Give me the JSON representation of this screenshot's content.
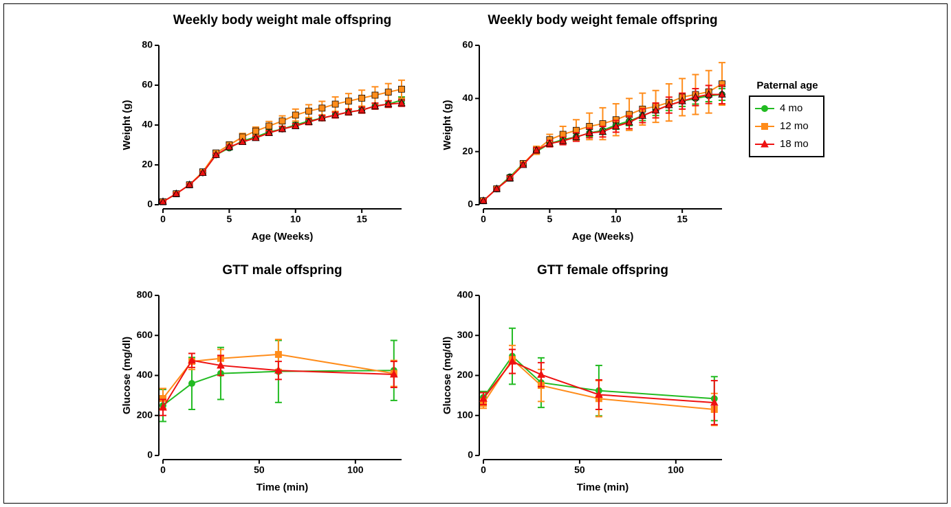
{
  "chart_data": [
    {
      "type": "line",
      "title": "Weekly body weight male offspring",
      "x_label": "Age (Weeks)",
      "y_label": "Weight (g)",
      "x": [
        0,
        1,
        2,
        3,
        4,
        5,
        6,
        7,
        8,
        9,
        10,
        11,
        12,
        13,
        14,
        15,
        16,
        17,
        18
      ],
      "xlim": [
        0,
        18
      ],
      "xticks": [
        0,
        5,
        10,
        15
      ],
      "ylim": [
        0,
        80
      ],
      "yticks": [
        0,
        20,
        40,
        60,
        80
      ],
      "marker_edge": "#000000",
      "series": [
        {
          "name": "4 mo",
          "color": "#22bb22",
          "marker": "circle",
          "values": [
            1.5,
            5.5,
            10,
            16,
            25,
            28.5,
            32,
            34,
            36.5,
            38,
            40,
            42,
            43.5,
            45,
            46.5,
            47.5,
            49.5,
            50.5,
            52.5
          ],
          "errors": [
            0.3,
            0.4,
            0.5,
            0.7,
            0.8,
            0.9,
            1,
            1,
            1.1,
            1.2,
            1.2,
            1.3,
            1.3,
            1.4,
            1.4,
            1.5,
            1.5,
            1.6,
            1.6
          ]
        },
        {
          "name": "12 mo",
          "color": "#ff8c1a",
          "marker": "square",
          "values": [
            1.5,
            5.5,
            10,
            16.5,
            26,
            30,
            34,
            37,
            39.5,
            42,
            45,
            47,
            48.5,
            50.5,
            52,
            53.5,
            55,
            56.5,
            58
          ],
          "errors": [
            0.3,
            0.5,
            0.7,
            1,
            1.2,
            1.5,
            1.8,
            2,
            2.3,
            2.6,
            3,
            3.2,
            3.4,
            3.6,
            3.8,
            4,
            4.2,
            4.3,
            4.5
          ]
        },
        {
          "name": "18 mo",
          "color": "#ee1111",
          "marker": "triangle",
          "values": [
            1.5,
            5.5,
            10,
            16,
            25,
            29,
            31.5,
            33.5,
            36,
            38,
            39.5,
            41.5,
            43.5,
            45,
            46.5,
            47.5,
            49.5,
            50.5,
            51
          ],
          "errors": [
            0.3,
            0.4,
            0.5,
            0.7,
            0.8,
            0.9,
            1,
            1,
            1.1,
            1.2,
            1.2,
            1.3,
            1.3,
            1.4,
            1.4,
            1.5,
            1.5,
            1.6,
            1.6
          ]
        }
      ]
    },
    {
      "type": "line",
      "title": "Weekly body weight female offspring",
      "x_label": "Age (Weeks)",
      "y_label": "Weight (g)",
      "x": [
        0,
        1,
        2,
        3,
        4,
        5,
        6,
        7,
        8,
        9,
        10,
        11,
        12,
        13,
        14,
        15,
        16,
        17,
        18
      ],
      "xlim": [
        0,
        18
      ],
      "xticks": [
        0,
        5,
        10,
        15
      ],
      "ylim": [
        0,
        60
      ],
      "yticks": [
        0,
        20,
        40,
        60
      ],
      "marker_edge": "#000000",
      "legend_title": "Paternal age",
      "series": [
        {
          "name": "4 mo",
          "color": "#22bb22",
          "marker": "circle",
          "values": [
            1.5,
            6,
            10.5,
            15.5,
            20,
            23,
            24.5,
            25.5,
            27,
            28,
            30,
            31.5,
            33.5,
            35.5,
            37.5,
            39,
            40,
            41,
            41.5
          ],
          "errors": [
            0.3,
            0.4,
            0.6,
            0.8,
            1,
            1.1,
            1.2,
            1.3,
            1.4,
            1.5,
            1.6,
            1.7,
            1.8,
            1.9,
            2,
            2,
            2.1,
            2.2,
            2.2
          ]
        },
        {
          "name": "12 mo",
          "color": "#ff8c1a",
          "marker": "square",
          "values": [
            1.5,
            6,
            10,
            15.5,
            20.5,
            24.5,
            26.5,
            28,
            29.5,
            30.5,
            32,
            34,
            36,
            37,
            38.5,
            40.5,
            41.5,
            42.5,
            45.5
          ],
          "errors": [
            0.5,
            0.5,
            1,
            1,
            1.5,
            2,
            3,
            4,
            5,
            6,
            6,
            6,
            6,
            6,
            7,
            7,
            7.5,
            8,
            8
          ]
        },
        {
          "name": "18 mo",
          "color": "#ee1111",
          "marker": "triangle",
          "values": [
            1.5,
            6,
            10,
            15,
            20.5,
            23,
            24,
            25.5,
            27,
            27.5,
            29.5,
            31,
            33.5,
            35.5,
            37.5,
            39,
            40.5,
            41.5,
            41.5
          ],
          "errors": [
            0.3,
            0.4,
            0.6,
            0.8,
            1,
            1.2,
            1.4,
            1.6,
            1.8,
            2,
            2.2,
            2.4,
            2.6,
            2.8,
            3,
            3,
            3.2,
            3.4,
            3.5
          ]
        }
      ]
    },
    {
      "type": "line",
      "title": "GTT male offspring",
      "x_label": "Time (min)",
      "y_label": "Glucose (mg/dl)",
      "x": [
        0,
        15,
        30,
        60,
        120
      ],
      "xlim": [
        0,
        124
      ],
      "xticks": [
        0,
        50,
        100
      ],
      "ylim": [
        0,
        800
      ],
      "yticks": [
        0,
        200,
        400,
        600,
        800
      ],
      "series": [
        {
          "name": "4 mo",
          "color": "#22bb22",
          "marker": "circle",
          "values": [
            250,
            360,
            410,
            420,
            425
          ],
          "errors": [
            80,
            130,
            130,
            155,
            150
          ]
        },
        {
          "name": "12 mo",
          "color": "#ff8c1a",
          "marker": "square",
          "values": [
            285,
            470,
            485,
            505,
            410
          ],
          "errors": [
            50,
            40,
            45,
            75,
            65
          ]
        },
        {
          "name": "18 mo",
          "color": "#ee1111",
          "marker": "triangle",
          "values": [
            240,
            475,
            450,
            425,
            405
          ],
          "errors": [
            40,
            35,
            50,
            45,
            65
          ]
        }
      ]
    },
    {
      "type": "line",
      "title": "GTT female offspring",
      "x_label": "Time (min)",
      "y_label": "Glucose (mg/dl)",
      "x": [
        0,
        15,
        30,
        60,
        120
      ],
      "xlim": [
        0,
        124
      ],
      "xticks": [
        0,
        50,
        100
      ],
      "ylim": [
        0,
        400
      ],
      "yticks": [
        0,
        100,
        200,
        300,
        400
      ],
      "series": [
        {
          "name": "4 mo",
          "color": "#22bb22",
          "marker": "circle",
          "values": [
            145,
            248,
            182,
            162,
            142
          ],
          "errors": [
            15,
            70,
            62,
            63,
            55
          ]
        },
        {
          "name": "12 mo",
          "color": "#ff8c1a",
          "marker": "square",
          "values": [
            130,
            240,
            175,
            142,
            115
          ],
          "errors": [
            12,
            35,
            40,
            45,
            40
          ]
        },
        {
          "name": "18 mo",
          "color": "#ee1111",
          "marker": "triangle",
          "values": [
            142,
            235,
            202,
            152,
            132
          ],
          "errors": [
            15,
            30,
            30,
            37,
            55
          ]
        }
      ]
    }
  ]
}
